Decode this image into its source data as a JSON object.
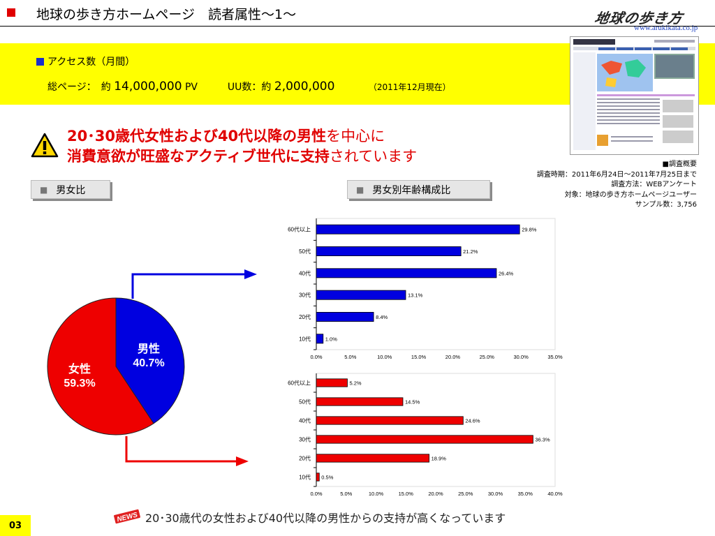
{
  "header": {
    "title": "地球の歩き方ホームページ　読者属性～1～",
    "logo_text": "地球の歩き方",
    "site_url": "www.arukikata.co.jp"
  },
  "access": {
    "heading": "アクセス数（月間）",
    "pv_prefix": "総ページ：　約",
    "pv_value": "14,000,000",
    "pv_unit": "PV",
    "uu_prefix": "UU数：約",
    "uu_value": "2,000,000",
    "as_of": "（2011年12月現在）"
  },
  "headline": {
    "line1_bold": "20･30歳代女性および40代以降の男性",
    "line1_normal": "を中心に",
    "line2_bold": "消費意欲が旺盛なアクティブ世代に支持",
    "line2_normal": "されています"
  },
  "survey": {
    "heading": "■調査概要",
    "period": "調査時期：2011年6月24日～2011年7月25日まで",
    "method": "調査方法：WEBアンケート",
    "target": "対象：地球の歩き方ホームページユーザー",
    "sample": "サンプル数：3,756"
  },
  "labels": {
    "gender": "男女比",
    "age": "男女別年齢構成比",
    "bullet": "■"
  },
  "colors": {
    "male": "#0000e0",
    "female": "#ee0000",
    "accent_yellow": "#ffff00"
  },
  "footer": {
    "news_badge": "NEWS",
    "text": "20･30歳代の女性および40代以降の男性からの支持が高くなっています",
    "page": "03"
  },
  "chart_data": [
    {
      "type": "pie",
      "slices": [
        {
          "name": "男性",
          "value": 40.7,
          "label": "40.7%"
        },
        {
          "name": "女性",
          "value": 59.3,
          "label": "59.3%"
        }
      ]
    },
    {
      "type": "bar",
      "orientation": "horizontal",
      "series_name": "男性",
      "categories": [
        "60代以上",
        "50代",
        "40代",
        "30代",
        "20代",
        "10代"
      ],
      "values": [
        29.8,
        21.2,
        26.4,
        13.1,
        8.4,
        1.0
      ],
      "value_labels": [
        "29.8%",
        "21.2%",
        "26.4%",
        "13.1%",
        "8.4%",
        "1.0%"
      ],
      "xlim": [
        0,
        35
      ],
      "ticks": [
        "0.0%",
        "5.0%",
        "10.0%",
        "15.0%",
        "20.0%",
        "25.0%",
        "30.0%",
        "35.0%"
      ]
    },
    {
      "type": "bar",
      "orientation": "horizontal",
      "series_name": "女性",
      "categories": [
        "60代以上",
        "50代",
        "40代",
        "30代",
        "20代",
        "10代"
      ],
      "values": [
        5.2,
        14.5,
        24.6,
        36.3,
        18.9,
        0.5
      ],
      "value_labels": [
        "5.2%",
        "14.5%",
        "24.6%",
        "36.3%",
        "18.9%",
        "0.5%"
      ],
      "xlim": [
        0,
        40
      ],
      "ticks": [
        "0.0%",
        "5.0%",
        "10.0%",
        "15.0%",
        "20.0%",
        "25.0%",
        "30.0%",
        "35.0%",
        "40.0%"
      ]
    }
  ]
}
